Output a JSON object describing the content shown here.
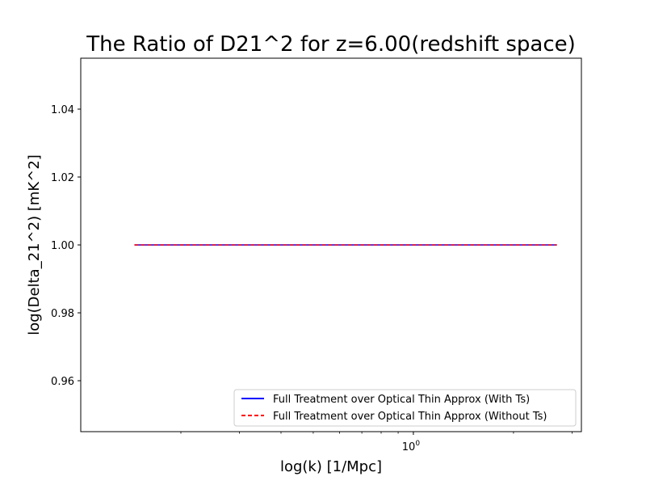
{
  "chart_data": {
    "type": "line",
    "title": "The Ratio of D21^2 for z=6.00(redshift space)",
    "xlabel": "log(k) [1/Mpc]",
    "ylabel": "log(Delta_21^2) [mK^2]",
    "x_scale": "log",
    "xlim": [
      0.1,
      3.2
    ],
    "ylim": [
      0.945,
      1.055
    ],
    "x_ticks": [
      {
        "value": 1.0,
        "label": "10",
        "exponent": "0"
      }
    ],
    "x_minor_ticks": [
      0.2,
      0.3,
      0.4,
      0.5,
      0.6,
      0.7,
      0.8,
      0.9,
      2.0,
      3.0
    ],
    "y_ticks": [
      {
        "value": 0.96,
        "label": "0.96"
      },
      {
        "value": 0.98,
        "label": "0.98"
      },
      {
        "value": 1.0,
        "label": "1.00"
      },
      {
        "value": 1.02,
        "label": "1.02"
      },
      {
        "value": 1.04,
        "label": "1.04"
      }
    ],
    "grid": false,
    "legend_position": "lower-right",
    "series": [
      {
        "name": "Full Treatment over Optical Thin Approx (With Ts)",
        "color": "#0000ff",
        "linestyle": "solid",
        "x": [
          0.145,
          0.3,
          0.6,
          1.0,
          1.5,
          2.0,
          2.7
        ],
        "y": [
          1.0,
          1.0,
          1.0,
          1.0,
          1.0,
          1.0,
          1.0
        ]
      },
      {
        "name": "Full Treatment over Optical Thin Approx (Without Ts)",
        "color": "#ff0000",
        "linestyle": "dashed",
        "x": [
          0.145,
          0.3,
          0.6,
          1.0,
          1.5,
          2.0,
          2.7
        ],
        "y": [
          1.0,
          1.0,
          1.0,
          1.0,
          1.0,
          1.0,
          1.0
        ]
      }
    ]
  }
}
